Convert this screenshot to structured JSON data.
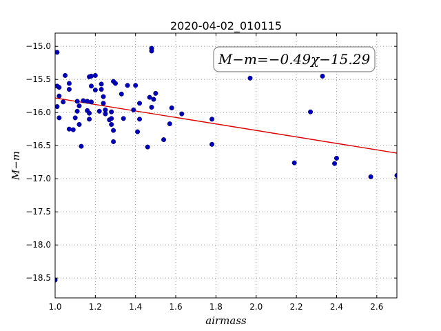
{
  "chart_data": {
    "type": "scatter",
    "title": "2020-04-02_010115",
    "xlabel": "airmass",
    "ylabel": "M−m",
    "xlim": [
      1.0,
      2.7
    ],
    "ylim": [
      -18.8,
      -14.8
    ],
    "xticks": [
      "1.0",
      "1.2",
      "1.4",
      "1.6",
      "1.8",
      "2.0",
      "2.2",
      "2.4",
      "2.6"
    ],
    "yticks": [
      "−15.0",
      "−15.5",
      "−16.0",
      "−16.5",
      "−17.0",
      "−17.5",
      "−18.0",
      "−18.5"
    ],
    "xtick_values": [
      1.0,
      1.2,
      1.4,
      1.6,
      1.8,
      2.0,
      2.2,
      2.4,
      2.6
    ],
    "ytick_values": [
      -15.0,
      -15.5,
      -16.0,
      -16.5,
      -17.0,
      -17.5,
      -18.0,
      -18.5
    ],
    "grid": true,
    "annotation": "M−m=−0.49χ−15.29",
    "annotation_position": "top-right",
    "fit": {
      "slope": -0.49,
      "intercept": -15.29
    },
    "colors": {
      "points": "#0000bb",
      "fit": "#dd0000",
      "grid": "#888888"
    },
    "points": [
      [
        1.0,
        -18.53
      ],
      [
        1.01,
        -15.09
      ],
      [
        1.01,
        -15.6
      ],
      [
        1.01,
        -15.91
      ],
      [
        1.02,
        -15.62
      ],
      [
        1.02,
        -15.75
      ],
      [
        1.02,
        -16.08
      ],
      [
        1.04,
        -15.84
      ],
      [
        1.05,
        -15.44
      ],
      [
        1.07,
        -15.56
      ],
      [
        1.07,
        -15.65
      ],
      [
        1.07,
        -16.25
      ],
      [
        1.09,
        -16.26
      ],
      [
        1.1,
        -16.08
      ],
      [
        1.11,
        -15.83
      ],
      [
        1.11,
        -15.98
      ],
      [
        1.12,
        -15.9
      ],
      [
        1.12,
        -16.18
      ],
      [
        1.13,
        -16.51
      ],
      [
        1.14,
        -15.82
      ],
      [
        1.16,
        -15.83
      ],
      [
        1.16,
        -15.97
      ],
      [
        1.17,
        -15.46
      ],
      [
        1.17,
        -16.01
      ],
      [
        1.17,
        -16.1
      ],
      [
        1.18,
        -15.6
      ],
      [
        1.18,
        -15.45
      ],
      [
        1.18,
        -15.84
      ],
      [
        1.2,
        -15.44
      ],
      [
        1.2,
        -15.66
      ],
      [
        1.22,
        -15.98
      ],
      [
        1.23,
        -15.65
      ],
      [
        1.23,
        -15.57
      ],
      [
        1.24,
        -15.86
      ],
      [
        1.24,
        -15.76
      ],
      [
        1.25,
        -15.96
      ],
      [
        1.25,
        -16.02
      ],
      [
        1.27,
        -16.11
      ],
      [
        1.28,
        -16.09
      ],
      [
        1.28,
        -15.99
      ],
      [
        1.28,
        -16.18
      ],
      [
        1.29,
        -16.27
      ],
      [
        1.29,
        -16.44
      ],
      [
        1.29,
        -15.53
      ],
      [
        1.3,
        -15.56
      ],
      [
        1.33,
        -15.72
      ],
      [
        1.34,
        -16.09
      ],
      [
        1.36,
        -15.59
      ],
      [
        1.39,
        -15.96
      ],
      [
        1.4,
        -15.59
      ],
      [
        1.41,
        -16.29
      ],
      [
        1.42,
        -15.86
      ],
      [
        1.42,
        -16.1
      ],
      [
        1.46,
        -16.52
      ],
      [
        1.47,
        -15.77
      ],
      [
        1.48,
        -15.03
      ],
      [
        1.48,
        -15.07
      ],
      [
        1.48,
        -15.92
      ],
      [
        1.49,
        -15.8
      ],
      [
        1.5,
        -15.71
      ],
      [
        1.54,
        -16.41
      ],
      [
        1.57,
        -16.17
      ],
      [
        1.58,
        -15.93
      ],
      [
        1.63,
        -16.02
      ],
      [
        1.78,
        -16.1
      ],
      [
        1.78,
        -16.48
      ],
      [
        1.97,
        -15.48
      ],
      [
        2.19,
        -16.76
      ],
      [
        2.27,
        -15.99
      ],
      [
        2.33,
        -15.45
      ],
      [
        2.39,
        -16.77
      ],
      [
        2.4,
        -16.69
      ],
      [
        2.57,
        -16.97
      ],
      [
        2.7,
        -16.95
      ]
    ]
  }
}
